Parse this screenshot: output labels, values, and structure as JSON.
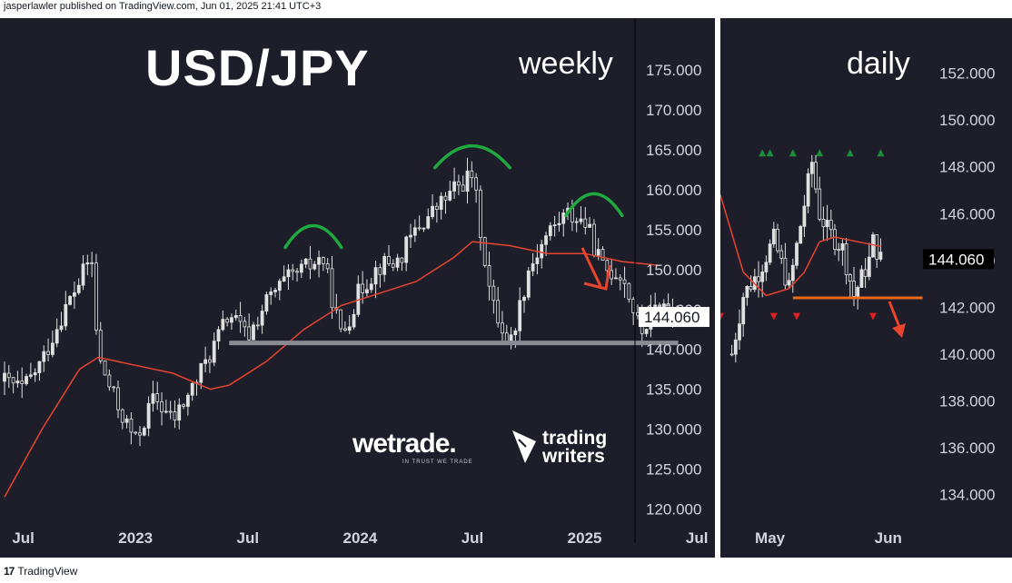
{
  "header": {
    "text": "jasperlawler published on TradingView.com, Jun 01, 2025 21:41 UTC+3"
  },
  "footer": {
    "logo": "17",
    "text": "TradingView"
  },
  "weekly": {
    "title": "USD/JPY",
    "timeframe": "weekly",
    "brand_wetrade": "wetrade.",
    "brand_wetrade_sub": "IN TRUST WE TRADE",
    "brand_tw_1": "trading",
    "brand_tw_2": "writers"
  },
  "daily": {
    "timeframe": "daily"
  },
  "colors": {
    "background": "#1e1e2a",
    "axis_text": "#d1d4dc",
    "candle": "#e0e0e0",
    "moving_average": "#e8442e",
    "arcs": "#1faa3f",
    "support_weekly": "#8a8a92",
    "support_daily": "#e86a1a",
    "arrow": "#e8442e",
    "price_tag_bg": "#ffffff",
    "price_tag_text": "#131722",
    "daily_tag_bg": "#000000",
    "daily_tag_text": "#ffffff",
    "marker_up": "#1e8c3a",
    "marker_down": "#e0201e"
  },
  "chart_data": [
    {
      "type": "candlestick",
      "timeframe": "weekly",
      "price_axis": {
        "ticks": [
          "175.000",
          "170.000",
          "165.000",
          "160.000",
          "155.000",
          "150.000",
          "145.000",
          "140.000",
          "135.000",
          "130.000",
          "125.000",
          "120.000"
        ],
        "ylim": [
          118,
          179
        ]
      },
      "time_axis": {
        "ticks": [
          "Jul",
          "2023",
          "Jul",
          "2024",
          "Jul",
          "2025",
          "Jul"
        ]
      },
      "last_price": "144.060",
      "close_path": [
        [
          "2022-06",
          136.0
        ],
        [
          "2022-07",
          135.0
        ],
        [
          "2022-08",
          138.5
        ],
        [
          "2022-09",
          144.0
        ],
        [
          "2022-10",
          148.5
        ],
        [
          "2022-10-20",
          151.8
        ],
        [
          "2022-11",
          139.0
        ],
        [
          "2022-12",
          133.0
        ],
        [
          "2023-01",
          128.5
        ],
        [
          "2023-02",
          134.0
        ],
        [
          "2023-03",
          131.0
        ],
        [
          "2023-04",
          135.0
        ],
        [
          "2023-05",
          139.5
        ],
        [
          "2023-06",
          144.5
        ],
        [
          "2023-07",
          141.5
        ],
        [
          "2023-08",
          146.0
        ],
        [
          "2023-09",
          148.5
        ],
        [
          "2023-10",
          150.0
        ],
        [
          "2023-11",
          151.5
        ],
        [
          "2023-12",
          141.5
        ],
        [
          "2024-01",
          147.5
        ],
        [
          "2024-02",
          150.5
        ],
        [
          "2024-03",
          151.0
        ],
        [
          "2024-04",
          155.0
        ],
        [
          "2024-05",
          157.5
        ],
        [
          "2024-06",
          160.0
        ],
        [
          "2024-07",
          161.9
        ],
        [
          "2024-08",
          146.0
        ],
        [
          "2024-09",
          140.5
        ],
        [
          "2024-10",
          150.0
        ],
        [
          "2024-11",
          154.5
        ],
        [
          "2024-12",
          157.0
        ],
        [
          "2025-01",
          156.0
        ],
        [
          "2025-02",
          150.0
        ],
        [
          "2025-03",
          149.5
        ],
        [
          "2025-04",
          142.0
        ],
        [
          "2025-05",
          146.0
        ],
        [
          "2025-05-30",
          144.06
        ]
      ],
      "moving_average": [
        [
          "2022-06",
          121.5
        ],
        [
          "2022-08",
          130.0
        ],
        [
          "2022-10",
          137.5
        ],
        [
          "2022-11",
          139.0
        ],
        [
          "2023-01",
          138.0
        ],
        [
          "2023-03",
          137.0
        ],
        [
          "2023-05",
          135.0
        ],
        [
          "2023-06",
          135.5
        ],
        [
          "2023-08",
          138.5
        ],
        [
          "2023-10",
          142.5
        ],
        [
          "2023-12",
          145.5
        ],
        [
          "2024-02",
          147.0
        ],
        [
          "2024-04",
          148.5
        ],
        [
          "2024-06",
          151.5
        ],
        [
          "2024-07",
          153.5
        ],
        [
          "2024-09",
          153.0
        ],
        [
          "2024-11",
          152.0
        ],
        [
          "2025-01",
          152.0
        ],
        [
          "2025-03",
          151.0
        ],
        [
          "2025-05",
          150.5
        ]
      ],
      "support": {
        "price": 140.8,
        "from": "2023-06",
        "to": "2025-06"
      },
      "head_shoulders_arcs": [
        {
          "from": "2023-09",
          "to": "2023-12",
          "peak": 155.5
        },
        {
          "from": "2024-05",
          "to": "2024-09",
          "peak": 165.5
        },
        {
          "from": "2024-12",
          "to": "2025-03",
          "peak": 159.5
        }
      ]
    },
    {
      "type": "candlestick",
      "timeframe": "daily",
      "price_axis": {
        "ticks": [
          "152.000",
          "150.000",
          "148.000",
          "146.000",
          "144.000",
          "142.000",
          "140.000",
          "138.000",
          "136.000",
          "134.000"
        ],
        "ylim": [
          132.7,
          153.5
        ]
      },
      "time_axis": {
        "ticks": [
          "May",
          "Jun"
        ]
      },
      "last_price": "144.060",
      "close_path": [
        [
          "Apr 21",
          140.0
        ],
        [
          "Apr 24",
          142.5
        ],
        [
          "Apr 28",
          143.5
        ],
        [
          "May 02",
          144.9
        ],
        [
          "May 06",
          142.8
        ],
        [
          "May 09",
          145.5
        ],
        [
          "May 12",
          148.2
        ],
        [
          "May 14",
          146.0
        ],
        [
          "May 16",
          145.3
        ],
        [
          "May 20",
          144.5
        ],
        [
          "May 23",
          142.5
        ],
        [
          "May 27",
          144.0
        ],
        [
          "May 28",
          144.8
        ],
        [
          "May 30",
          144.06
        ]
      ],
      "moving_average": [
        [
          "Apr 18",
          146.8
        ],
        [
          "Apr 24",
          143.5
        ],
        [
          "Apr 30",
          142.5
        ],
        [
          "May 06",
          142.8
        ],
        [
          "May 10",
          143.5
        ],
        [
          "May 14",
          144.8
        ],
        [
          "May 18",
          145.0
        ],
        [
          "May 24",
          144.8
        ],
        [
          "May 30",
          144.6
        ]
      ],
      "support": {
        "price": 142.4,
        "from": "May 07",
        "to": "Jun 10"
      },
      "markers_up": [
        "Apr 29",
        "May 01",
        "May 07",
        "May 14",
        "May 22",
        "May 30"
      ],
      "markers_down": [
        "Apr 18",
        "May 02",
        "May 08",
        "May 28"
      ]
    }
  ]
}
